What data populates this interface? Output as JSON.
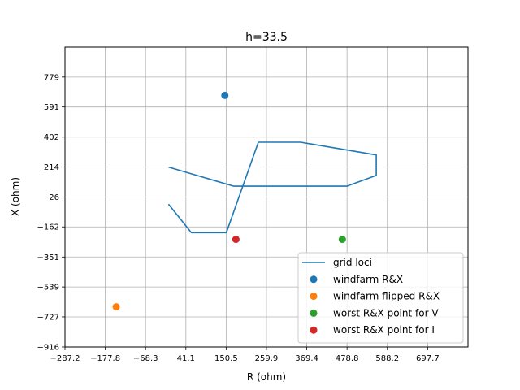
{
  "chart_data": {
    "type": "scatter",
    "title": "h=33.5",
    "xlabel": "R (ohm)",
    "ylabel": "X (ohm)",
    "xlim": [
      -287.2,
      807.2
    ],
    "ylim": [
      -916,
      967
    ],
    "xticks": [
      -287.2,
      -177.8,
      -68.3,
      41.1,
      150.5,
      259.9,
      369.4,
      478.8,
      588.2,
      697.7
    ],
    "xtick_labels": [
      "−287.2",
      "−177.8",
      "−68.3",
      "41.1",
      "150.5",
      "259.9",
      "369.4",
      "478.8",
      "588.2",
      "697.7"
    ],
    "yticks": [
      -916,
      -727,
      -539,
      -351,
      -162,
      26,
      214,
      402,
      591,
      779
    ],
    "ytick_labels": [
      "−916",
      "−727",
      "−539",
      "−351",
      "−162",
      "26",
      "214",
      "402",
      "591",
      "779"
    ],
    "grid": true,
    "legend_position": "lower-right",
    "series": [
      {
        "name": "grid loci",
        "kind": "line",
        "color": "#1f77b4",
        "x": [
          -6,
          56,
          84,
          151,
          238,
          353,
          558,
          558,
          478,
          171,
          -6,
          -6
        ],
        "y": [
          -19,
          -198,
          -198,
          -198,
          370,
          370,
          290,
          161,
          94,
          94,
          214,
          214
        ]
      },
      {
        "name": "windfarm R&X",
        "kind": "scatter",
        "color": "#1f77b4",
        "x": [
          147
        ],
        "y": [
          664
        ]
      },
      {
        "name": "windfarm flipped R&X",
        "kind": "scatter",
        "color": "#ff7f0e",
        "x": [
          -148
        ],
        "y": [
          -664
        ]
      },
      {
        "name": "worst R&X point for V",
        "kind": "scatter",
        "color": "#2ca02c",
        "x": [
          466
        ],
        "y": [
          -240
        ]
      },
      {
        "name": "worst R&X point for I",
        "kind": "scatter",
        "color": "#d62728",
        "x": [
          177
        ],
        "y": [
          -240
        ]
      }
    ]
  }
}
